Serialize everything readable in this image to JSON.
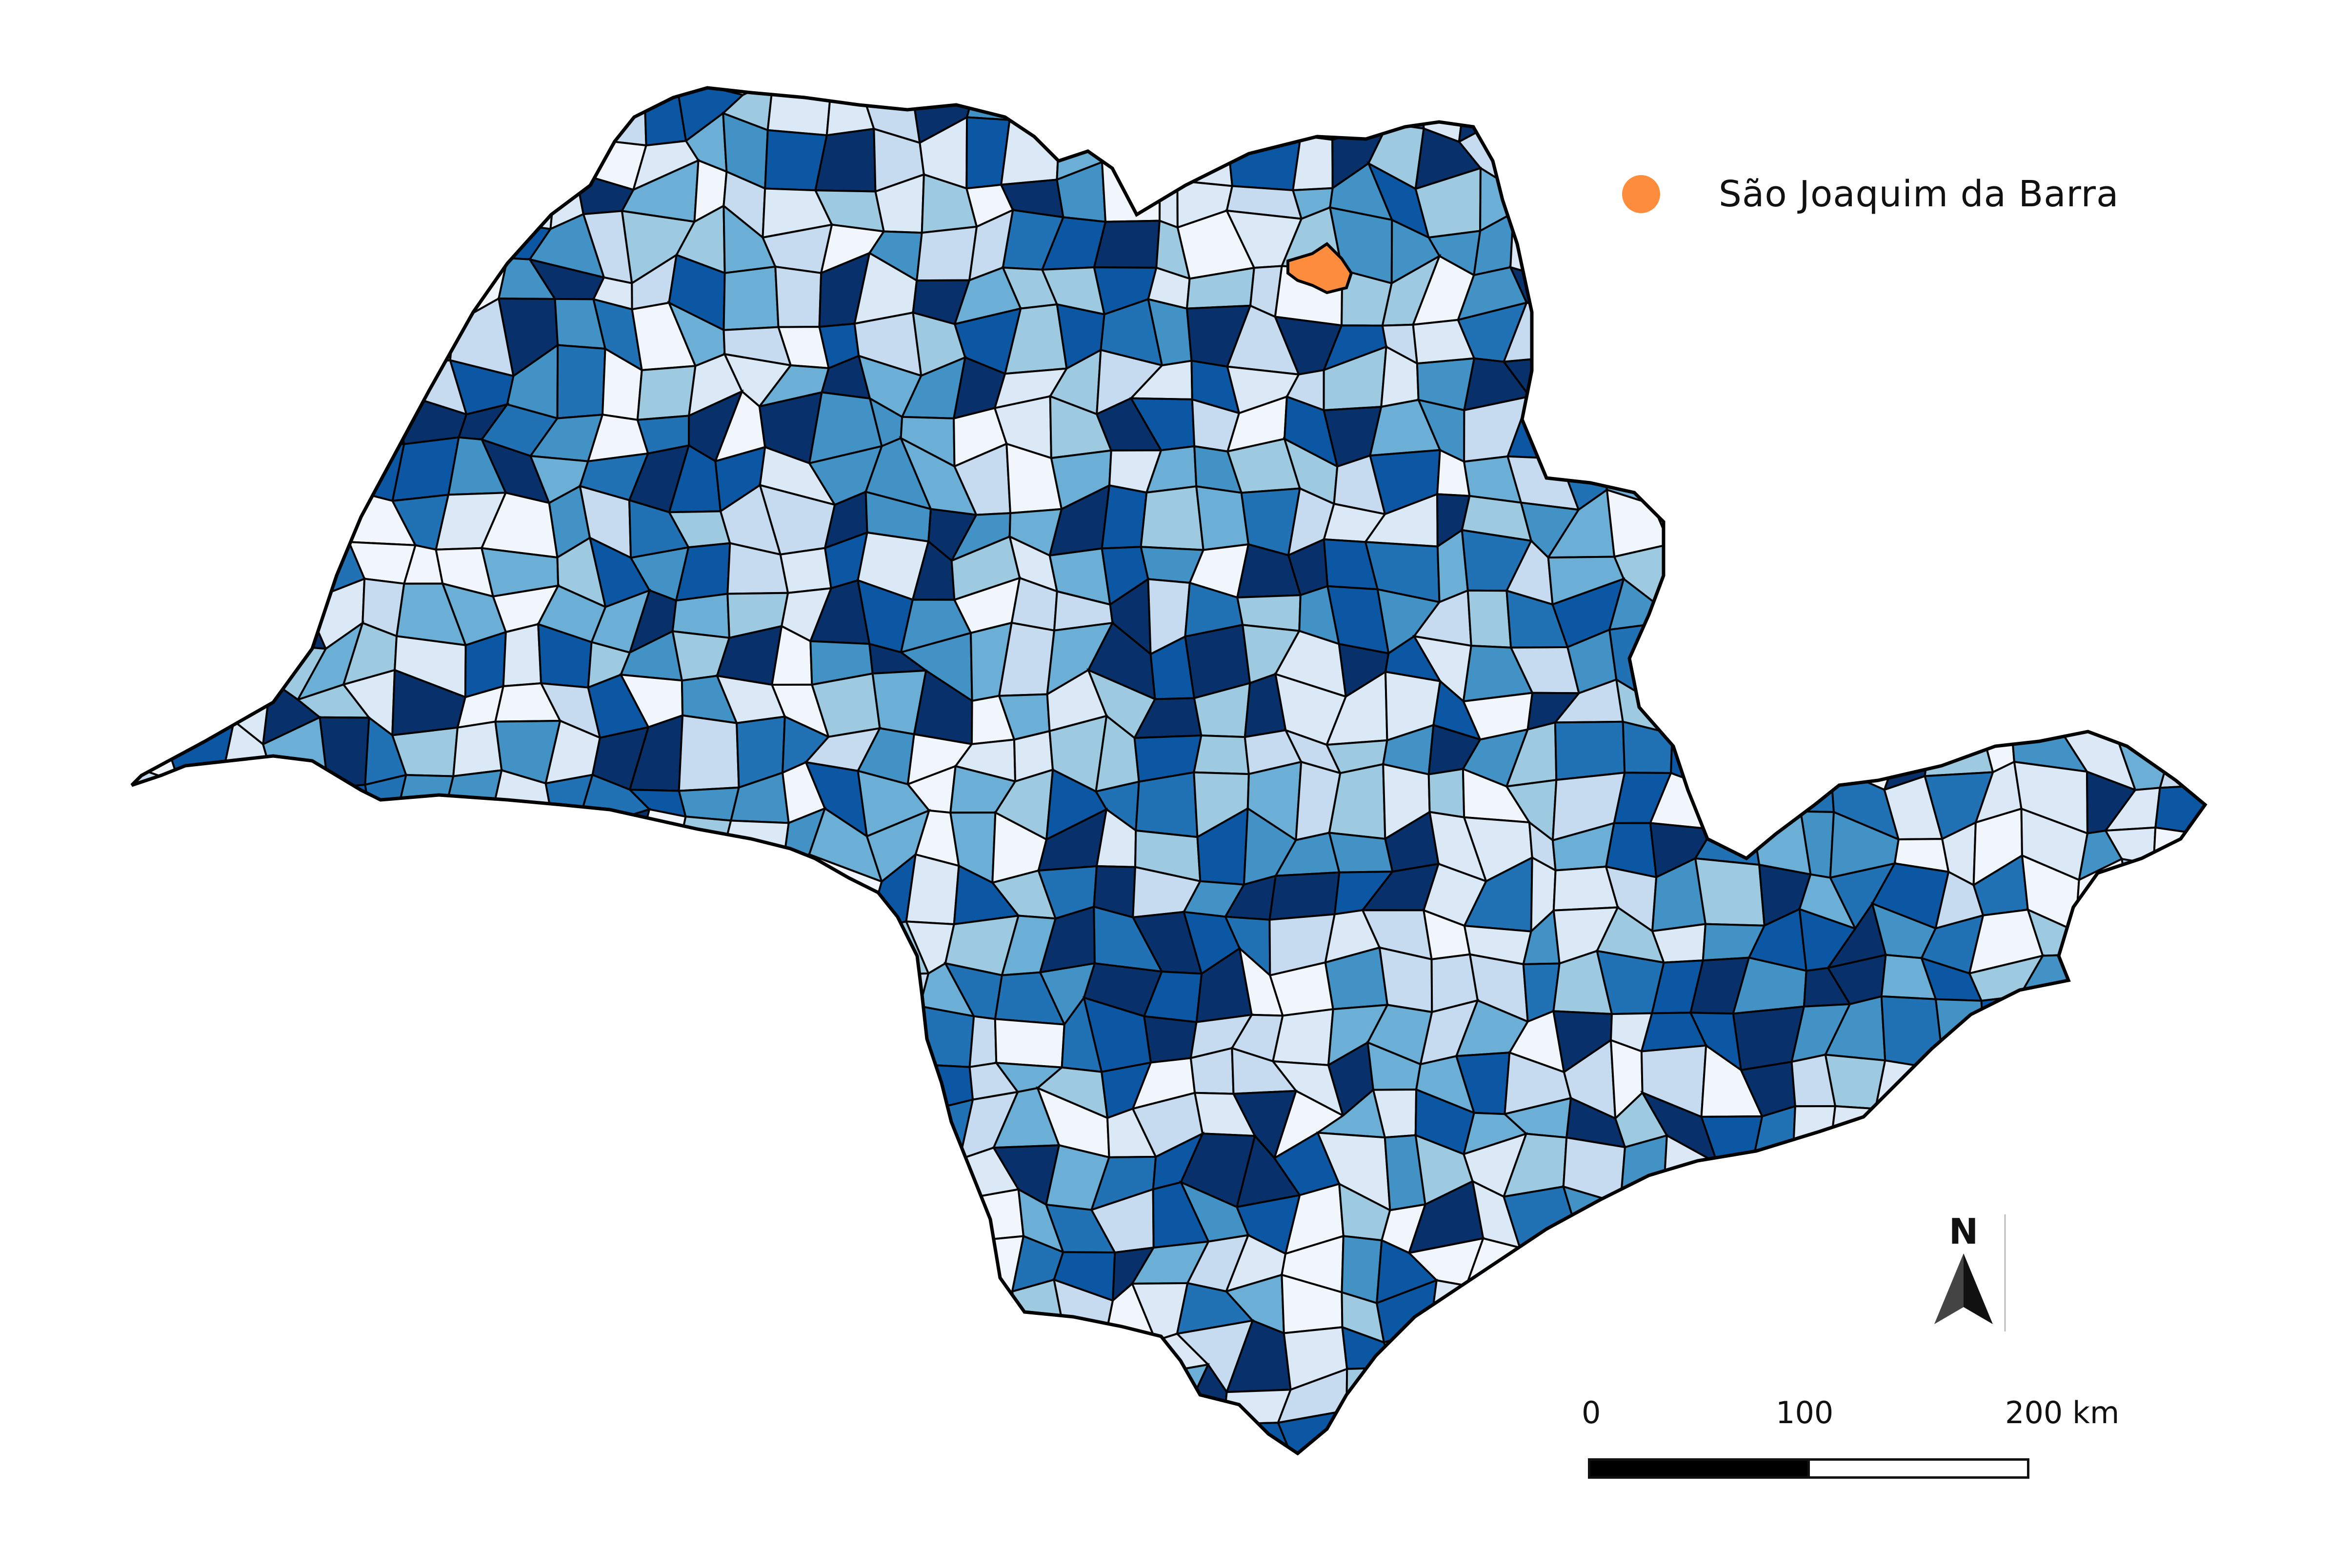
{
  "map": {
    "region": "São Paulo state municipalities",
    "fill_palette": [
      "#f1f6fc",
      "#dbe9f6",
      "#c6dbef",
      "#9ecae1",
      "#6baed6",
      "#4292c6",
      "#2171b5",
      "#0b57a4",
      "#08306b"
    ],
    "border_color": "#000000",
    "highlight": {
      "name": "São Joaquim da Barra",
      "color": "#fd8d3c"
    }
  },
  "legend": {
    "items": [
      {
        "label": "São Joaquim da Barra",
        "color": "#fd8d3c"
      }
    ]
  },
  "scale_bar": {
    "ticks": [
      "0",
      "100",
      "200 km"
    ]
  },
  "north_arrow": {
    "label": "N",
    "icon": "north-arrow-icon"
  }
}
